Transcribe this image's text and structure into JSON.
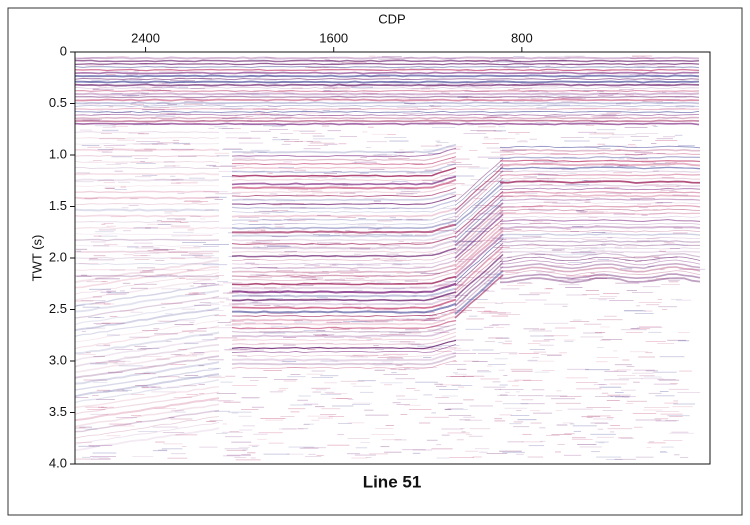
{
  "chart_data": {
    "type": "seismic",
    "title": "Line 51",
    "x_label": "CDP",
    "y_label": "TWT (s)",
    "xlim": [
      2700,
      0
    ],
    "xticks": [
      2400,
      1600,
      800
    ],
    "ylim": [
      0,
      4
    ],
    "yticks": [
      0,
      0.5,
      {
        "value": 1,
        "label": "1.0"
      },
      1.5,
      {
        "value": 2,
        "label": "2.0"
      },
      2.5,
      {
        "value": 3,
        "label": "3.0"
      },
      3.5,
      {
        "value": 4,
        "label": "4.0"
      }
    ]
  }
}
